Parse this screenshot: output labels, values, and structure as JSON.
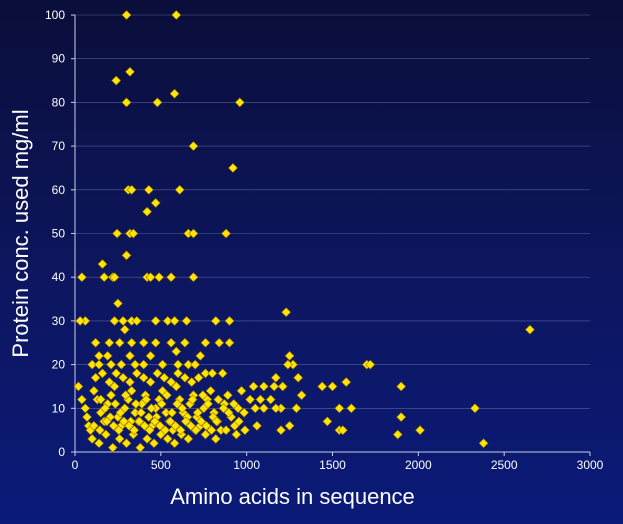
{
  "chart_data": {
    "type": "scatter",
    "title": "",
    "xlabel": "Amino acids in sequence",
    "ylabel": "Protein conc. used mg/ml",
    "xlim": [
      0,
      3000
    ],
    "ylim": [
      0,
      100
    ],
    "xticks": [
      0,
      500,
      1000,
      1500,
      2000,
      2500,
      3000
    ],
    "yticks": [
      0,
      10,
      20,
      30,
      40,
      50,
      60,
      70,
      80,
      90,
      100
    ],
    "grid": true,
    "legend": "none",
    "marker": "diamond",
    "marker_color": "#ffe500",
    "points": [
      [
        300,
        100
      ],
      [
        590,
        100
      ],
      [
        240,
        85
      ],
      [
        320,
        87
      ],
      [
        300,
        80
      ],
      [
        480,
        80
      ],
      [
        580,
        82
      ],
      [
        960,
        80
      ],
      [
        690,
        70
      ],
      [
        920,
        65
      ],
      [
        310,
        60
      ],
      [
        330,
        60
      ],
      [
        430,
        60
      ],
      [
        610,
        60
      ],
      [
        880,
        50
      ],
      [
        245,
        50
      ],
      [
        320,
        50
      ],
      [
        340,
        50
      ],
      [
        660,
        50
      ],
      [
        690,
        50
      ],
      [
        420,
        55
      ],
      [
        470,
        57
      ],
      [
        300,
        45
      ],
      [
        160,
        43
      ],
      [
        60,
        30
      ],
      [
        40,
        40
      ],
      [
        170,
        40
      ],
      [
        220,
        40
      ],
      [
        230,
        40
      ],
      [
        420,
        40
      ],
      [
        440,
        40
      ],
      [
        490,
        40
      ],
      [
        560,
        40
      ],
      [
        690,
        40
      ],
      [
        1230,
        32
      ],
      [
        2650,
        28
      ],
      [
        30,
        30
      ],
      [
        230,
        30
      ],
      [
        250,
        34
      ],
      [
        280,
        30
      ],
      [
        290,
        28
      ],
      [
        330,
        30
      ],
      [
        360,
        30
      ],
      [
        470,
        30
      ],
      [
        540,
        30
      ],
      [
        580,
        30
      ],
      [
        650,
        30
      ],
      [
        820,
        30
      ],
      [
        900,
        30
      ],
      [
        120,
        25
      ],
      [
        200,
        25
      ],
      [
        260,
        25
      ],
      [
        330,
        25
      ],
      [
        400,
        25
      ],
      [
        470,
        25
      ],
      [
        560,
        25
      ],
      [
        640,
        25
      ],
      [
        760,
        25
      ],
      [
        840,
        25
      ],
      [
        900,
        25
      ],
      [
        140,
        22
      ],
      [
        190,
        22
      ],
      [
        320,
        22
      ],
      [
        440,
        22
      ],
      [
        590,
        23
      ],
      [
        730,
        22
      ],
      [
        1250,
        22
      ],
      [
        1270,
        20
      ],
      [
        1700,
        20
      ],
      [
        1720,
        20
      ],
      [
        1240,
        20
      ],
      [
        100,
        20
      ],
      [
        140,
        20
      ],
      [
        210,
        20
      ],
      [
        270,
        20
      ],
      [
        350,
        20
      ],
      [
        400,
        20
      ],
      [
        510,
        20
      ],
      [
        600,
        20
      ],
      [
        660,
        20
      ],
      [
        700,
        20
      ],
      [
        760,
        18
      ],
      [
        800,
        18
      ],
      [
        860,
        18
      ],
      [
        1170,
        17
      ],
      [
        1300,
        17
      ],
      [
        1440,
        15
      ],
      [
        1500,
        15
      ],
      [
        1580,
        16
      ],
      [
        1900,
        15
      ],
      [
        1040,
        15
      ],
      [
        1100,
        15
      ],
      [
        1160,
        15
      ],
      [
        1210,
        15
      ],
      [
        970,
        14
      ],
      [
        1020,
        12
      ],
      [
        1080,
        12
      ],
      [
        1140,
        12
      ],
      [
        1200,
        10
      ],
      [
        1320,
        13
      ],
      [
        1540,
        10
      ],
      [
        1610,
        10
      ],
      [
        2330,
        10
      ],
      [
        1050,
        10
      ],
      [
        1100,
        10
      ],
      [
        1170,
        10
      ],
      [
        1290,
        10
      ],
      [
        1470,
        7
      ],
      [
        1540,
        5
      ],
      [
        1560,
        5
      ],
      [
        1880,
        4
      ],
      [
        1900,
        8
      ],
      [
        2010,
        5
      ],
      [
        2380,
        2
      ],
      [
        1250,
        6
      ],
      [
        1200,
        5
      ],
      [
        1060,
        6
      ],
      [
        990,
        5
      ],
      [
        20,
        15
      ],
      [
        40,
        12
      ],
      [
        60,
        10
      ],
      [
        70,
        8
      ],
      [
        80,
        6
      ],
      [
        90,
        5
      ],
      [
        110,
        14
      ],
      [
        130,
        12
      ],
      [
        150,
        9
      ],
      [
        170,
        7
      ],
      [
        190,
        11
      ],
      [
        210,
        13
      ],
      [
        230,
        15
      ],
      [
        250,
        8
      ],
      [
        270,
        6
      ],
      [
        290,
        10
      ],
      [
        310,
        12
      ],
      [
        330,
        14
      ],
      [
        350,
        9
      ],
      [
        370,
        7
      ],
      [
        390,
        11
      ],
      [
        410,
        13
      ],
      [
        430,
        8
      ],
      [
        450,
        6
      ],
      [
        470,
        10
      ],
      [
        490,
        12
      ],
      [
        510,
        14
      ],
      [
        530,
        9
      ],
      [
        550,
        7
      ],
      [
        570,
        5
      ],
      [
        590,
        15
      ],
      [
        610,
        12
      ],
      [
        630,
        9
      ],
      [
        650,
        7
      ],
      [
        670,
        11
      ],
      [
        690,
        13
      ],
      [
        710,
        8
      ],
      [
        730,
        6
      ],
      [
        750,
        10
      ],
      [
        770,
        12
      ],
      [
        790,
        14
      ],
      [
        810,
        9
      ],
      [
        830,
        7
      ],
      [
        850,
        5
      ],
      [
        870,
        11
      ],
      [
        890,
        13
      ],
      [
        910,
        8
      ],
      [
        930,
        6
      ],
      [
        950,
        10
      ],
      [
        100,
        3
      ],
      [
        140,
        2
      ],
      [
        180,
        4
      ],
      [
        220,
        1
      ],
      [
        260,
        3
      ],
      [
        300,
        2
      ],
      [
        340,
        4
      ],
      [
        380,
        1
      ],
      [
        420,
        3
      ],
      [
        460,
        2
      ],
      [
        500,
        4
      ],
      [
        540,
        3
      ],
      [
        580,
        2
      ],
      [
        620,
        4
      ],
      [
        660,
        3
      ],
      [
        700,
        5
      ],
      [
        760,
        4
      ],
      [
        820,
        3
      ],
      [
        880,
        5
      ],
      [
        940,
        4
      ],
      [
        120,
        17
      ],
      [
        160,
        18
      ],
      [
        200,
        16
      ],
      [
        240,
        18
      ],
      [
        280,
        17
      ],
      [
        320,
        16
      ],
      [
        360,
        18
      ],
      [
        400,
        17
      ],
      [
        440,
        16
      ],
      [
        480,
        18
      ],
      [
        520,
        17
      ],
      [
        560,
        16
      ],
      [
        600,
        18
      ],
      [
        640,
        17
      ],
      [
        680,
        16
      ],
      [
        720,
        17
      ],
      [
        150,
        12
      ],
      [
        175,
        10
      ],
      [
        205,
        8
      ],
      [
        235,
        11
      ],
      [
        265,
        9
      ],
      [
        295,
        13
      ],
      [
        325,
        7
      ],
      [
        355,
        11
      ],
      [
        385,
        9
      ],
      [
        415,
        12
      ],
      [
        445,
        10
      ],
      [
        475,
        8
      ],
      [
        505,
        11
      ],
      [
        535,
        13
      ],
      [
        565,
        9
      ],
      [
        595,
        11
      ],
      [
        625,
        10
      ],
      [
        655,
        8
      ],
      [
        685,
        12
      ],
      [
        715,
        9
      ],
      [
        745,
        13
      ],
      [
        775,
        11
      ],
      [
        805,
        8
      ],
      [
        835,
        12
      ],
      [
        865,
        10
      ],
      [
        895,
        9
      ],
      [
        925,
        11
      ],
      [
        955,
        7
      ],
      [
        985,
        9
      ],
      [
        110,
        6
      ],
      [
        145,
        5
      ],
      [
        185,
        7
      ],
      [
        225,
        6
      ],
      [
        255,
        5
      ],
      [
        285,
        7
      ],
      [
        315,
        6
      ],
      [
        345,
        5
      ],
      [
        375,
        7
      ],
      [
        405,
        6
      ],
      [
        435,
        5
      ],
      [
        465,
        7
      ],
      [
        495,
        6
      ],
      [
        525,
        5
      ],
      [
        555,
        7
      ],
      [
        585,
        6
      ],
      [
        615,
        5
      ],
      [
        645,
        7
      ],
      [
        675,
        6
      ],
      [
        705,
        5
      ],
      [
        735,
        7
      ],
      [
        765,
        6
      ],
      [
        795,
        5
      ],
      [
        825,
        7
      ]
    ]
  }
}
